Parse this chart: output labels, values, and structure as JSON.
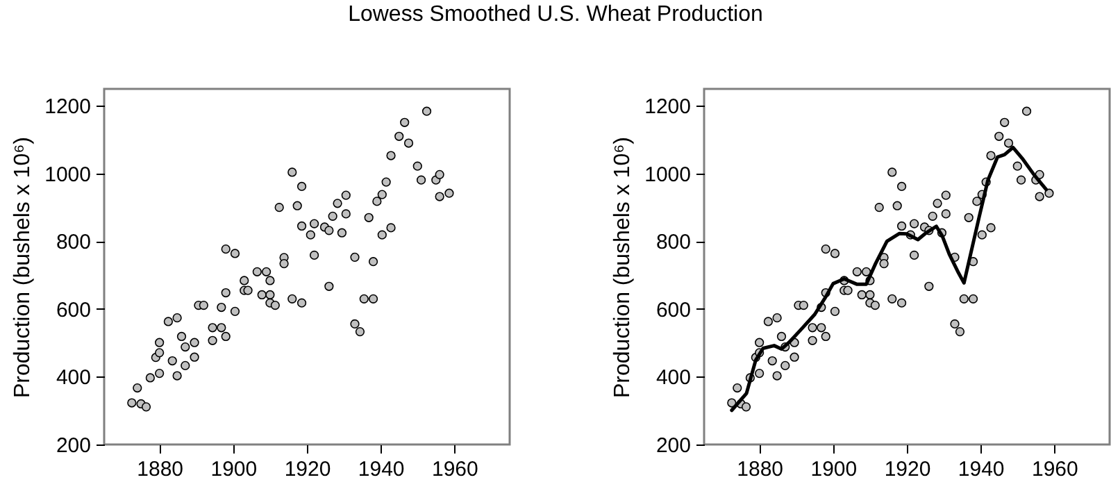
{
  "chart_data": [
    {
      "type": "scatter",
      "title": "Lowess Smoothed U.S. Wheat Production",
      "ylabel": "Production (bushels x 10⁶)",
      "marker": "circle",
      "color": "#c0c0c0",
      "x": [
        1872.5,
        1874,
        1875,
        1876.4,
        1877.5,
        1879,
        1880,
        1880,
        1880,
        1882.4,
        1883.5,
        1884.8,
        1884.8,
        1886,
        1887,
        1887,
        1889.5,
        1889.5,
        1890.6,
        1892,
        1894.4,
        1894.4,
        1896.8,
        1896.8,
        1898,
        1898,
        1898,
        1900.5,
        1900.5,
        1903,
        1903,
        1904,
        1906.5,
        1907.8,
        1909,
        1910,
        1910,
        1910,
        1911.4,
        1912.5,
        1913.8,
        1913.8,
        1916,
        1916,
        1917.4,
        1918.6,
        1918.6,
        1918.6,
        1921,
        1922,
        1922,
        1924.8,
        1926,
        1926,
        1927,
        1928.3,
        1929.5,
        1930.6,
        1930.6,
        1933,
        1933,
        1934.4,
        1935.5,
        1936.8,
        1938,
        1938,
        1939,
        1940.4,
        1940.4,
        1941.5,
        1942.8,
        1942.8,
        1945,
        1946.5,
        1947.6,
        1950,
        1951,
        1952.5,
        1955,
        1956,
        1956,
        1958.6
      ],
      "values": [
        323,
        367,
        320,
        311,
        397,
        457,
        501,
        471,
        410,
        563,
        447,
        574,
        403,
        519,
        488,
        433,
        501,
        458,
        611,
        611,
        545,
        507,
        545,
        605,
        777,
        648,
        519,
        764,
        593,
        684,
        655,
        655,
        710,
        642,
        710,
        684,
        642,
        618,
        611,
        900,
        752,
        734,
        1004,
        630,
        905,
        962,
        845,
        618,
        819,
        852,
        759,
        842,
        832,
        667,
        874,
        912,
        825,
        936,
        881,
        753,
        556,
        533,
        630,
        870,
        630,
        740,
        918,
        938,
        819,
        975,
        840,
        1053,
        1110,
        1151,
        1090,
        1022,
        981,
        1184,
        981,
        997,
        932,
        942
      ],
      "xlim": [
        1865,
        1975
      ],
      "xticks": [
        1880,
        1900,
        1920,
        1940,
        1960
      ],
      "ylim": [
        200,
        1250
      ],
      "yticks": [
        200,
        400,
        600,
        800,
        1000,
        1200
      ]
    },
    {
      "type": "scatter",
      "ylabel": "Production (bushels x 10⁶)",
      "series": [
        {
          "type": "scatter",
          "marker": "circle",
          "color": "#c0c0c0",
          "x": [
            1872.5,
            1874,
            1875,
            1876.4,
            1877.5,
            1879,
            1880,
            1880,
            1880,
            1882.4,
            1883.5,
            1884.8,
            1884.8,
            1886,
            1887,
            1887,
            1889.5,
            1889.5,
            1890.6,
            1892,
            1894.4,
            1894.4,
            1896.8,
            1896.8,
            1898,
            1898,
            1898,
            1900.5,
            1900.5,
            1903,
            1903,
            1904,
            1906.5,
            1907.8,
            1909,
            1910,
            1910,
            1910,
            1911.4,
            1912.5,
            1913.8,
            1913.8,
            1916,
            1916,
            1917.4,
            1918.6,
            1918.6,
            1918.6,
            1921,
            1922,
            1922,
            1924.8,
            1926,
            1926,
            1927,
            1928.3,
            1929.5,
            1930.6,
            1930.6,
            1933,
            1933,
            1934.4,
            1935.5,
            1936.8,
            1938,
            1938,
            1939,
            1940.4,
            1940.4,
            1941.5,
            1942.8,
            1942.8,
            1945,
            1946.5,
            1947.6,
            1950,
            1951,
            1952.5,
            1955,
            1956,
            1956,
            1958.6
          ],
          "values": [
            323,
            367,
            320,
            311,
            397,
            457,
            501,
            471,
            410,
            563,
            447,
            574,
            403,
            519,
            488,
            433,
            501,
            458,
            611,
            611,
            545,
            507,
            545,
            605,
            777,
            648,
            519,
            764,
            593,
            684,
            655,
            655,
            710,
            642,
            710,
            684,
            642,
            618,
            611,
            900,
            752,
            734,
            1004,
            630,
            905,
            962,
            845,
            618,
            819,
            852,
            759,
            842,
            832,
            667,
            874,
            912,
            825,
            936,
            881,
            753,
            556,
            533,
            630,
            870,
            630,
            740,
            918,
            938,
            819,
            975,
            840,
            1053,
            1110,
            1151,
            1090,
            1022,
            981,
            1184,
            981,
            997,
            932,
            942
          ]
        },
        {
          "type": "line",
          "marker": "none",
          "color": "#000000",
          "x": [
            1872.5,
            1876.5,
            1879,
            1881,
            1884,
            1886,
            1888,
            1891,
            1895,
            1898,
            1900,
            1903,
            1906.5,
            1909,
            1911.5,
            1914.6,
            1918,
            1920,
            1923,
            1925,
            1928,
            1929.6,
            1931.5,
            1934,
            1935.5,
            1937,
            1939.6,
            1942,
            1944.6,
            1946.5,
            1948.8,
            1951.5,
            1954.6,
            1957.8
          ],
          "values": [
            301,
            351,
            449,
            484,
            492,
            482,
            501,
            536,
            584,
            636,
            675,
            689,
            673,
            673,
            734,
            800,
            823,
            822,
            805,
            823,
            844,
            816,
            762,
            707,
            677,
            748,
            871,
            981,
            1049,
            1056,
            1077,
            1042,
            995,
            953
          ]
        }
      ],
      "xlim": [
        1865,
        1975
      ],
      "xticks": [
        1880,
        1900,
        1920,
        1940,
        1960
      ],
      "ylim": [
        200,
        1250
      ],
      "yticks": [
        200,
        400,
        600,
        800,
        1000,
        1200
      ]
    }
  ]
}
